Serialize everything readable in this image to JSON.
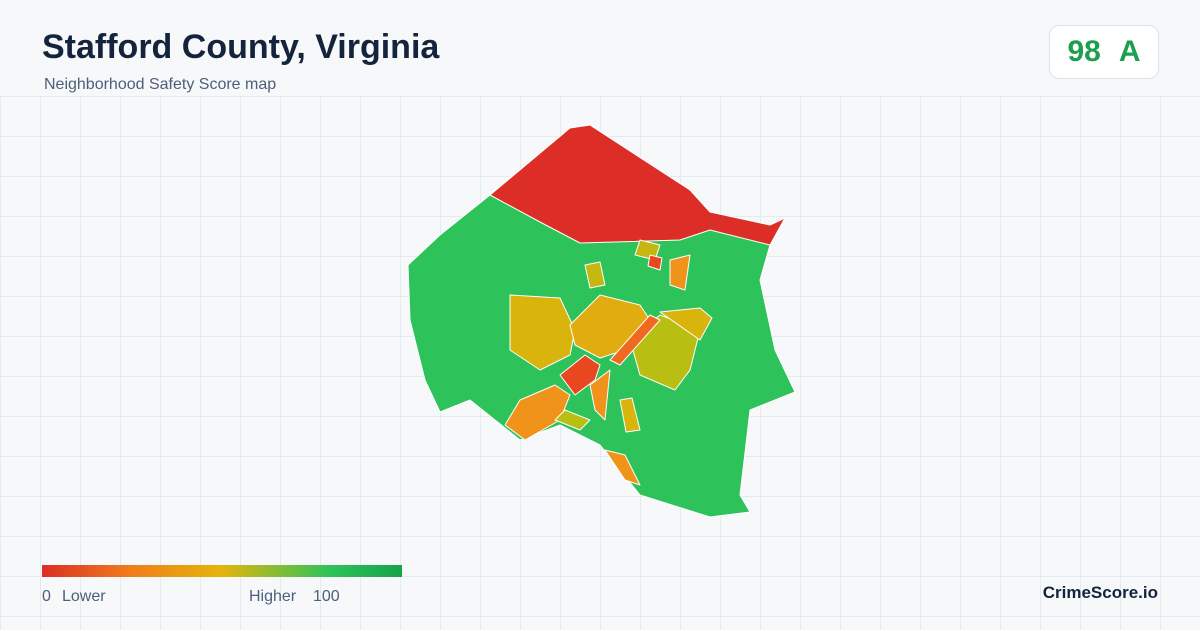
{
  "header": {
    "title": "Stafford County, Virginia",
    "subtitle": "Neighborhood Safety Score map"
  },
  "score": {
    "value": 98,
    "grade": "A"
  },
  "legend": {
    "min": 0,
    "min_label": "Lower",
    "max_label": "Higher",
    "max": 100
  },
  "footer": {
    "brand": "CrimeScore.io"
  }
}
